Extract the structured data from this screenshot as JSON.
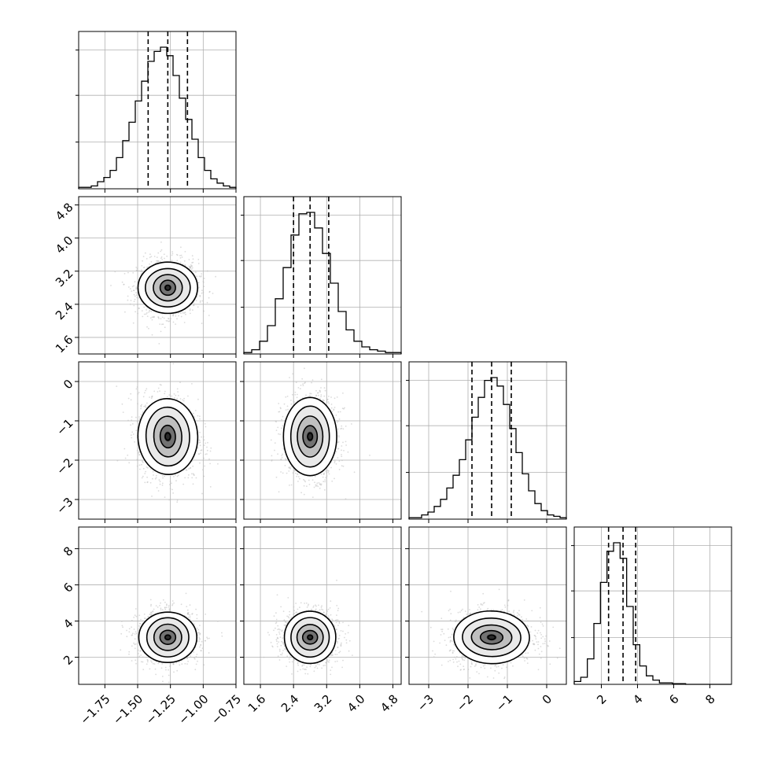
{
  "chart_data": {
    "type": "corner",
    "parameters": 4,
    "params": [
      {
        "range": [
          -1.95,
          -0.75
        ],
        "ticks": [
          -1.75,
          -1.5,
          -1.25,
          -1.0,
          -0.75
        ],
        "tick_labels": [
          "−1.75",
          "−1.50",
          "−1.25",
          "−1.00",
          "−0.75"
        ],
        "mean": -1.27,
        "sd": 0.11,
        "quantiles": [
          -1.42,
          -1.27,
          -1.12
        ]
      },
      {
        "range": [
          1.2,
          5.0
        ],
        "ticks": [
          1.6,
          2.4,
          3.2,
          4.0,
          4.8
        ],
        "tick_labels": [
          "1.6",
          "2.4",
          "3.2",
          "4.0",
          "4.8"
        ],
        "mean": 2.8,
        "sd": 0.32,
        "quantiles": [
          2.4,
          2.8,
          3.25
        ]
      },
      {
        "range": [
          -3.5,
          0.5
        ],
        "ticks": [
          -3,
          -2,
          -1,
          0
        ],
        "tick_labels": [
          "−3",
          "−2",
          "−1",
          "0"
        ],
        "mean": -1.4,
        "sd": 0.5,
        "quantiles": [
          -1.9,
          -1.4,
          -0.9
        ]
      },
      {
        "range": [
          0.5,
          9.2
        ],
        "ticks": [
          2,
          4,
          6,
          8
        ],
        "tick_labels": [
          "2",
          "4",
          "6",
          "8"
        ],
        "mean": 3.1,
        "sd": 0.7,
        "quantiles": [
          2.4,
          3.2,
          3.9
        ]
      }
    ],
    "histograms": [
      [
        0.01,
        0.01,
        0.02,
        0.05,
        0.08,
        0.13,
        0.22,
        0.34,
        0.47,
        0.62,
        0.76,
        0.9,
        0.97,
        1.0,
        0.94,
        0.8,
        0.64,
        0.49,
        0.35,
        0.22,
        0.13,
        0.07,
        0.04,
        0.02,
        0.01
      ],
      [
        0.01,
        0.03,
        0.09,
        0.2,
        0.39,
        0.61,
        0.84,
        0.99,
        1.0,
        0.89,
        0.71,
        0.5,
        0.3,
        0.17,
        0.09,
        0.05,
        0.03,
        0.02,
        0.01,
        0.01
      ],
      [
        0.01,
        0.01,
        0.03,
        0.05,
        0.09,
        0.14,
        0.22,
        0.31,
        0.42,
        0.56,
        0.72,
        0.86,
        0.98,
        1.0,
        0.94,
        0.81,
        0.64,
        0.47,
        0.32,
        0.2,
        0.11,
        0.06,
        0.03,
        0.02,
        0.01
      ],
      [
        0.02,
        0.05,
        0.18,
        0.43,
        0.72,
        0.94,
        1.0,
        0.89,
        0.55,
        0.28,
        0.13,
        0.06,
        0.03,
        0.01,
        0.01,
        0.005,
        0.005,
        0.0,
        0.0,
        0.0,
        0.0,
        0.0,
        0.0,
        0.0
      ]
    ],
    "correlations": [
      [
        1,
        0.0,
        -0.1,
        0.0
      ],
      [
        0.0,
        1,
        0.0,
        0.0
      ],
      [
        -0.1,
        0.0,
        1,
        0.05
      ],
      [
        0.0,
        0.0,
        0.05,
        1
      ]
    ],
    "title": "",
    "xlabel": "",
    "ylabel": "",
    "grid": true,
    "legend": "none",
    "colors": {
      "line": "#000000",
      "scatter": "#bdbdbd",
      "grid": "#b0b0b0",
      "density_dark": "#111111",
      "density_light": "#f2f2f2"
    }
  }
}
